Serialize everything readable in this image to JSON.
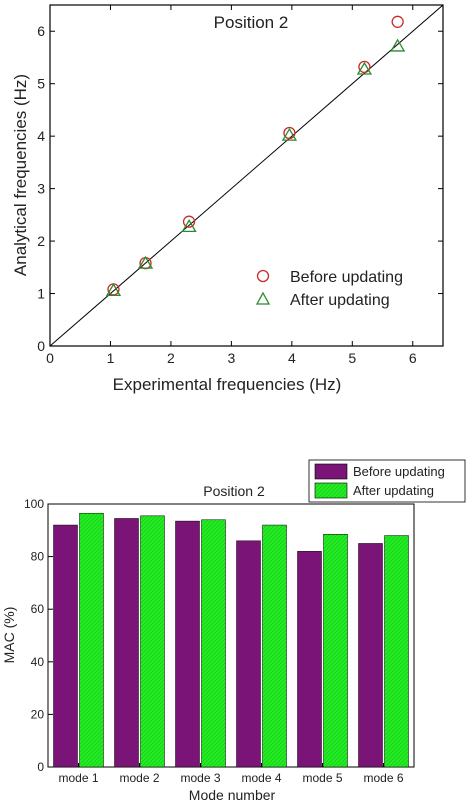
{
  "chart_data": [
    {
      "type": "scatter",
      "title": "Position 2",
      "xlabel": "Experimental frequencies (Hz)",
      "ylabel": "Analytical frequencies (Hz)",
      "xlim": [
        0,
        6.5
      ],
      "ylim": [
        0,
        6.5
      ],
      "xticks": [
        "0",
        "1",
        "2",
        "3",
        "4",
        "5",
        "6"
      ],
      "yticks": [
        "0",
        "1",
        "2",
        "3",
        "4",
        "5",
        "6"
      ],
      "reference_line": "y = x",
      "legend_position": "bottom-right",
      "series": [
        {
          "name": "Before updating",
          "marker": "circle",
          "color": "#cc2a2a",
          "x": [
            1.05,
            1.58,
            2.3,
            3.96,
            5.2,
            5.75
          ],
          "y": [
            1.08,
            1.58,
            2.37,
            4.06,
            5.32,
            6.18
          ]
        },
        {
          "name": "After updating",
          "marker": "triangle",
          "color": "#2b8a2b",
          "x": [
            1.05,
            1.58,
            2.3,
            3.96,
            5.2,
            5.75
          ],
          "y": [
            1.06,
            1.58,
            2.28,
            4.02,
            5.28,
            5.72
          ]
        }
      ]
    },
    {
      "type": "bar",
      "title": "Position 2",
      "xlabel": "Mode number",
      "ylabel": "MAC (%)",
      "ylim": [
        0,
        100
      ],
      "yticks": [
        "0",
        "20",
        "40",
        "60",
        "80",
        "100"
      ],
      "categories": [
        "mode 1",
        "mode 2",
        "mode 3",
        "mode 4",
        "mode 5",
        "mode 6"
      ],
      "legend_position": "top-right",
      "series": [
        {
          "name": "Before updating",
          "color": "#7a1577",
          "values": [
            92,
            94.5,
            93.5,
            86,
            82,
            85
          ]
        },
        {
          "name": "After updating",
          "color": "#22ee22",
          "values": [
            96.5,
            95.5,
            94,
            92,
            88.5,
            88
          ]
        }
      ]
    }
  ]
}
